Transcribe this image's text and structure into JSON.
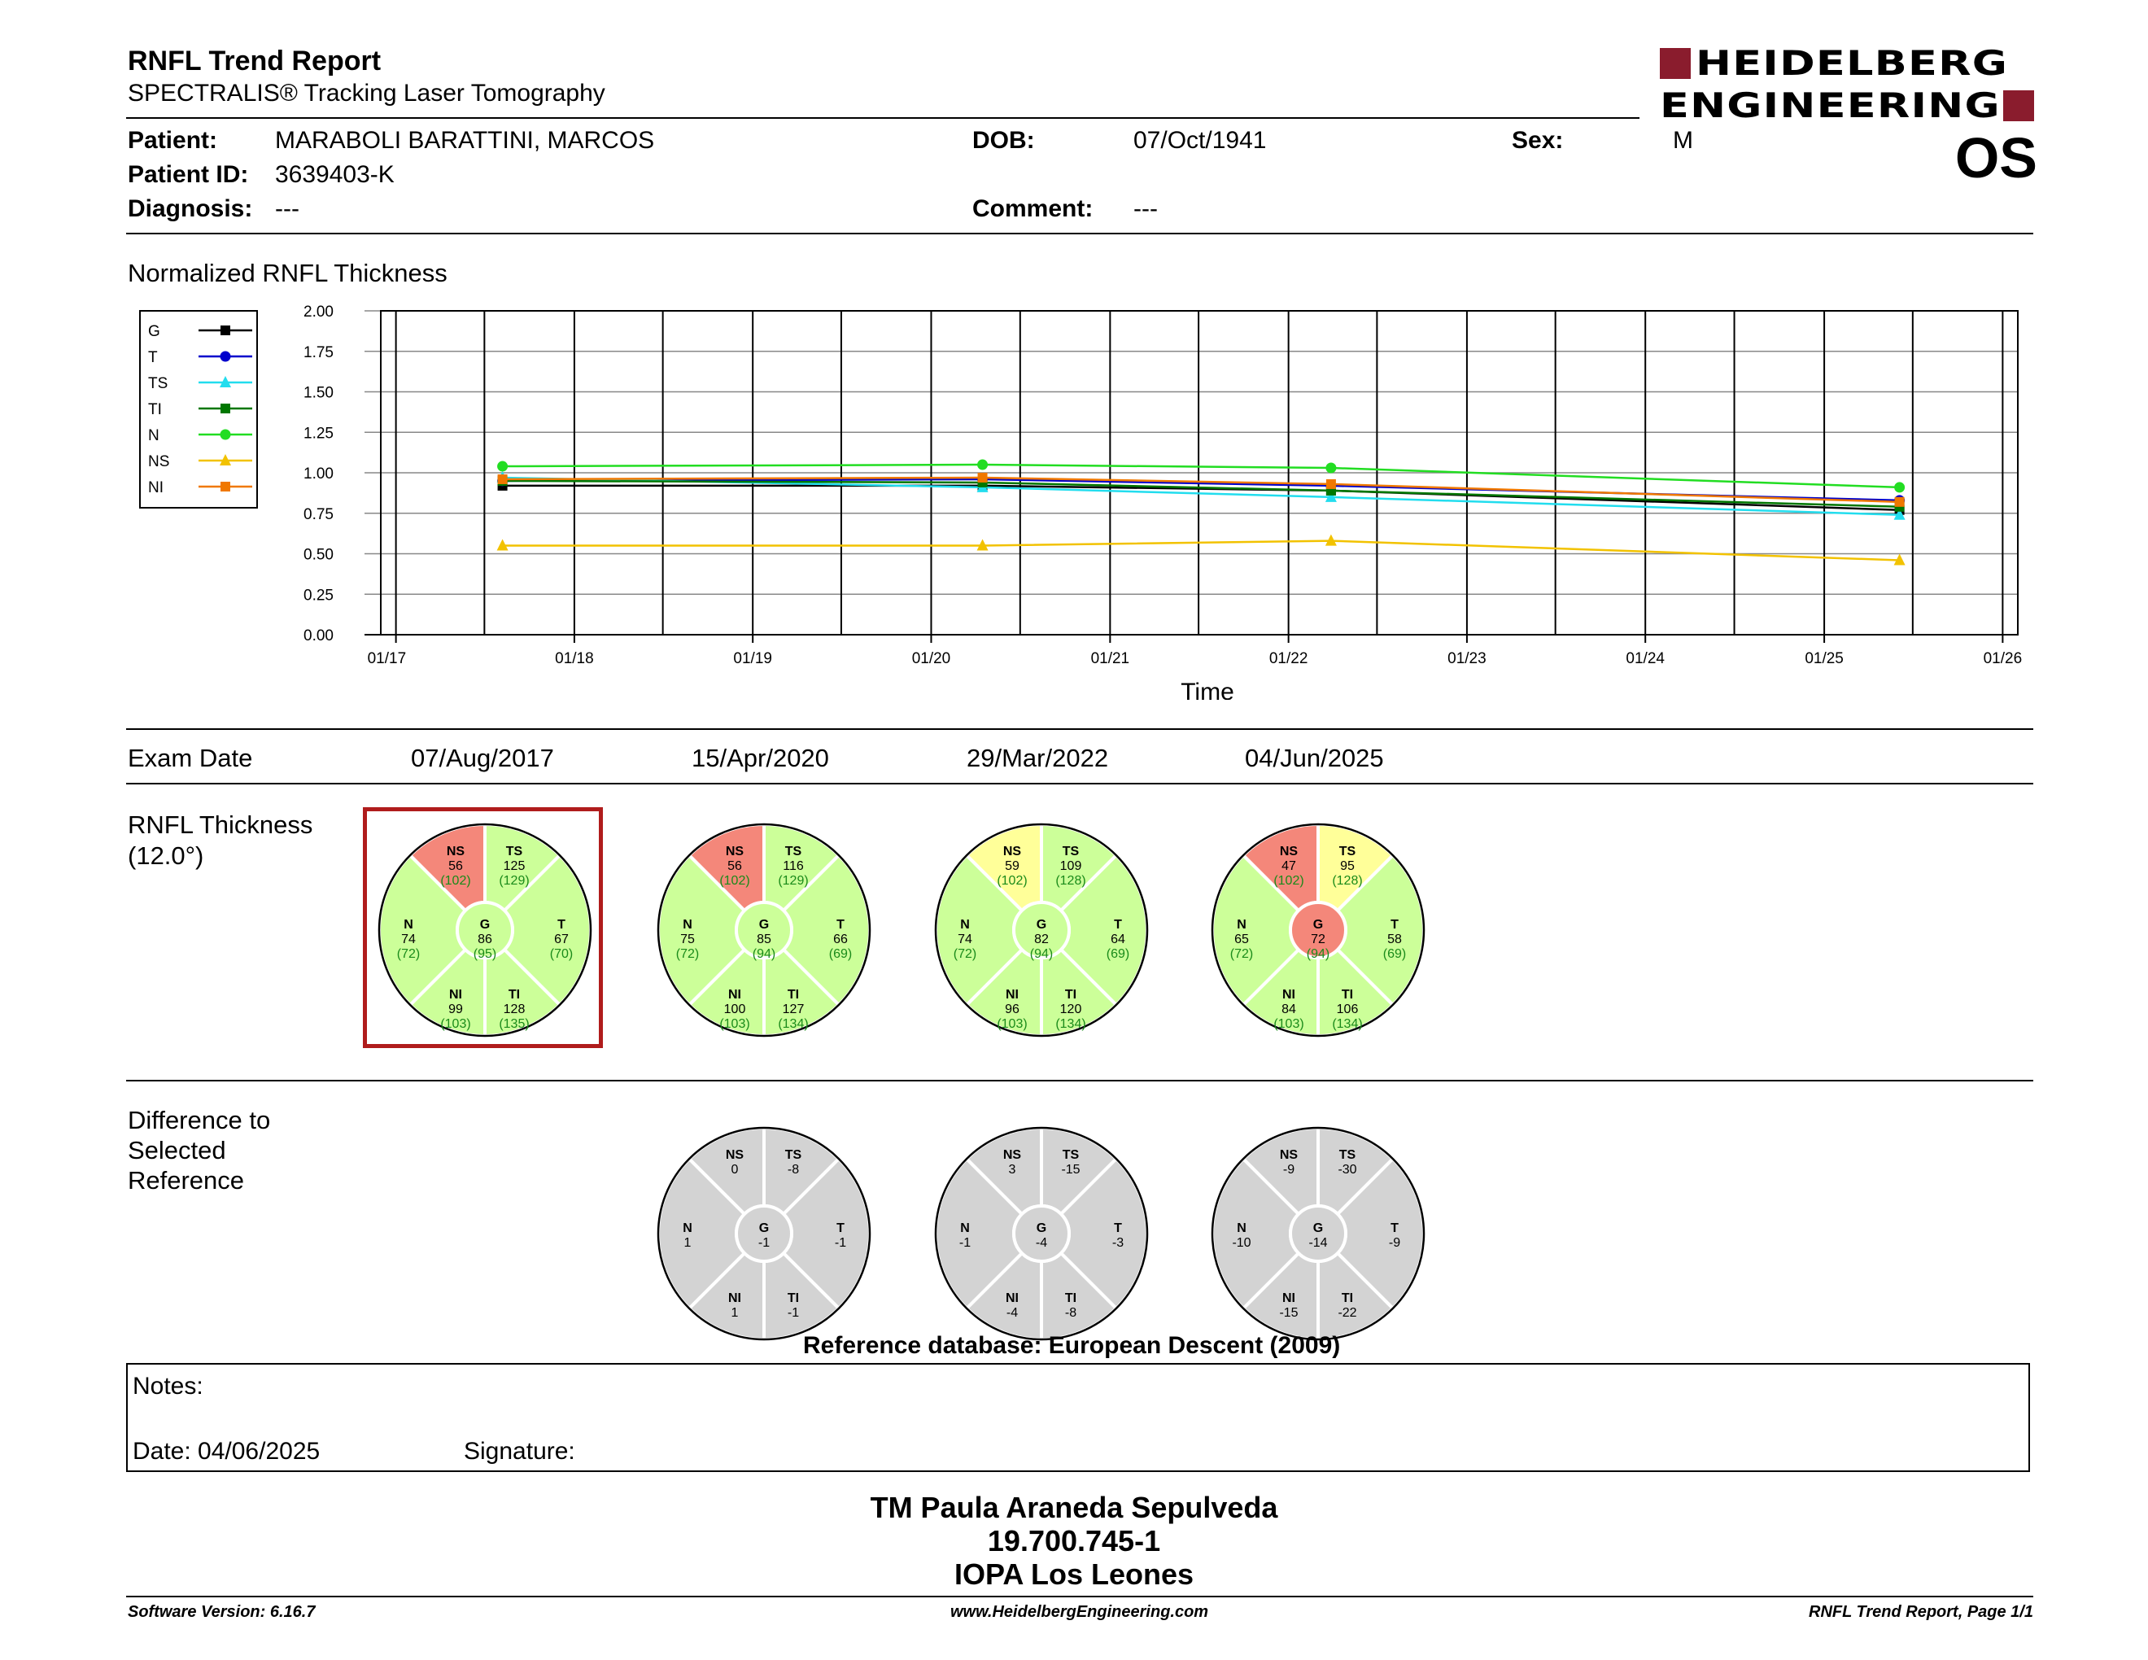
{
  "header": {
    "title": "RNFL Trend Report",
    "subtitle": "SPECTRALIS® Tracking Laser Tomography",
    "logo_line1": "HEIDELBERG",
    "logo_line2": "ENGINEERING",
    "eye": "OS"
  },
  "patient": {
    "name_label": "Patient:",
    "name": "MARABOLI  BARATTINI, MARCOS",
    "id_label": "Patient ID:",
    "id": "3639403-K",
    "diagnosis_label": "Diagnosis:",
    "diagnosis": "---",
    "dob_label": "DOB:",
    "dob": "07/Oct/1941",
    "comment_label": "Comment:",
    "comment": "---",
    "sex_label": "Sex:",
    "sex": "M"
  },
  "colors": {
    "normal": "#ccff99",
    "borderline": "#ffff99",
    "outside": "#f4877a",
    "difference": "#d3d3d3",
    "select_box": "#b01c1c",
    "logo": "#8a1c2d"
  },
  "chart_data": {
    "type": "line",
    "title": "Normalized RNFL Thickness",
    "xlabel": "Time",
    "ylabel": "",
    "ylim": [
      0,
      2
    ],
    "yticks": [
      "2.00",
      "1.75",
      "1.50",
      "1.25",
      "1.00",
      "0.75",
      "0.50",
      "0.25",
      "0.00"
    ],
    "xticks": [
      "01/17",
      "01/18",
      "01/19",
      "01/20",
      "01/21",
      "01/22",
      "01/23",
      "01/24",
      "01/25",
      "01/26"
    ],
    "x": [
      "2017-08-07",
      "2020-04-15",
      "2022-03-29",
      "2025-06-04"
    ],
    "grid": true,
    "legend_position": "left",
    "series": [
      {
        "name": "G",
        "color": "#000000",
        "marker": "square",
        "values": [
          0.92,
          0.92,
          0.89,
          0.77
        ]
      },
      {
        "name": "T",
        "color": "#0000cc",
        "marker": "circle",
        "values": [
          0.95,
          0.96,
          0.92,
          0.83
        ]
      },
      {
        "name": "TS",
        "color": "#22ddee",
        "marker": "triangle",
        "values": [
          0.97,
          0.91,
          0.85,
          0.74
        ]
      },
      {
        "name": "TI",
        "color": "#007700",
        "marker": "square",
        "values": [
          0.95,
          0.94,
          0.89,
          0.79
        ]
      },
      {
        "name": "N",
        "color": "#22dd22",
        "marker": "circle",
        "values": [
          1.04,
          1.05,
          1.03,
          0.91
        ]
      },
      {
        "name": "NS",
        "color": "#f2c200",
        "marker": "triangle",
        "values": [
          0.55,
          0.55,
          0.58,
          0.46
        ]
      },
      {
        "name": "NI",
        "color": "#f07800",
        "marker": "square",
        "values": [
          0.96,
          0.97,
          0.93,
          0.82
        ]
      }
    ]
  },
  "exams": {
    "label": "Exam Date",
    "dates": [
      "07/Aug/2017",
      "15/Apr/2020",
      "29/Mar/2022",
      "04/Jun/2025"
    ]
  },
  "thickness": {
    "label1": "RNFL Thickness",
    "label2": "(12.0°)",
    "circles": [
      {
        "NS": {
          "v": "56",
          "r": "(102)",
          "c": "outside"
        },
        "TS": {
          "v": "125",
          "r": "(129)",
          "c": "normal"
        },
        "N": {
          "v": "74",
          "r": "(72)",
          "c": "normal"
        },
        "G": {
          "v": "86",
          "r": "(95)",
          "c": "normal"
        },
        "T": {
          "v": "67",
          "r": "(70)",
          "c": "normal"
        },
        "NI": {
          "v": "99",
          "r": "(103)",
          "c": "normal"
        },
        "TI": {
          "v": "128",
          "r": "(135)",
          "c": "normal"
        }
      },
      {
        "NS": {
          "v": "56",
          "r": "(102)",
          "c": "outside"
        },
        "TS": {
          "v": "116",
          "r": "(129)",
          "c": "normal"
        },
        "N": {
          "v": "75",
          "r": "(72)",
          "c": "normal"
        },
        "G": {
          "v": "85",
          "r": "(94)",
          "c": "normal"
        },
        "T": {
          "v": "66",
          "r": "(69)",
          "c": "normal"
        },
        "NI": {
          "v": "100",
          "r": "(103)",
          "c": "normal"
        },
        "TI": {
          "v": "127",
          "r": "(134)",
          "c": "normal"
        }
      },
      {
        "NS": {
          "v": "59",
          "r": "(102)",
          "c": "borderline"
        },
        "TS": {
          "v": "109",
          "r": "(128)",
          "c": "normal"
        },
        "N": {
          "v": "74",
          "r": "(72)",
          "c": "normal"
        },
        "G": {
          "v": "82",
          "r": "(94)",
          "c": "normal"
        },
        "T": {
          "v": "64",
          "r": "(69)",
          "c": "normal"
        },
        "NI": {
          "v": "96",
          "r": "(103)",
          "c": "normal"
        },
        "TI": {
          "v": "120",
          "r": "(134)",
          "c": "normal"
        }
      },
      {
        "NS": {
          "v": "47",
          "r": "(102)",
          "c": "outside"
        },
        "TS": {
          "v": "95",
          "r": "(128)",
          "c": "borderline"
        },
        "N": {
          "v": "65",
          "r": "(72)",
          "c": "normal"
        },
        "G": {
          "v": "72",
          "r": "(94)",
          "c": "outside"
        },
        "T": {
          "v": "58",
          "r": "(69)",
          "c": "normal"
        },
        "NI": {
          "v": "84",
          "r": "(103)",
          "c": "normal"
        },
        "TI": {
          "v": "106",
          "r": "(134)",
          "c": "normal"
        }
      }
    ]
  },
  "difference": {
    "label1": "Difference to",
    "label2": "Selected",
    "label3": "Reference",
    "circles": [
      {
        "NS": "0",
        "TS": "-8",
        "N": "1",
        "G": "-1",
        "T": "-1",
        "NI": "1",
        "TI": "-1"
      },
      {
        "NS": "3",
        "TS": "-15",
        "N": "-1",
        "G": "-4",
        "T": "-3",
        "NI": "-4",
        "TI": "-8"
      },
      {
        "NS": "-9",
        "TS": "-30",
        "N": "-10",
        "G": "-14",
        "T": "-9",
        "NI": "-15",
        "TI": "-22"
      }
    ],
    "reference_db": "Reference database: European Descent (2009)"
  },
  "notes": {
    "notes_label": "Notes:",
    "date_label": "Date: 04/06/2025",
    "signature_label": "Signature:"
  },
  "signature": {
    "line1": "TM Paula Araneda Sepulveda",
    "line2": "19.700.745-1",
    "line3": "IOPA Los Leones"
  },
  "footer": {
    "software": "Software Version: 6.16.7",
    "website": "www.HeidelbergEngineering.com",
    "page": "RNFL Trend Report, Page 1/1"
  }
}
